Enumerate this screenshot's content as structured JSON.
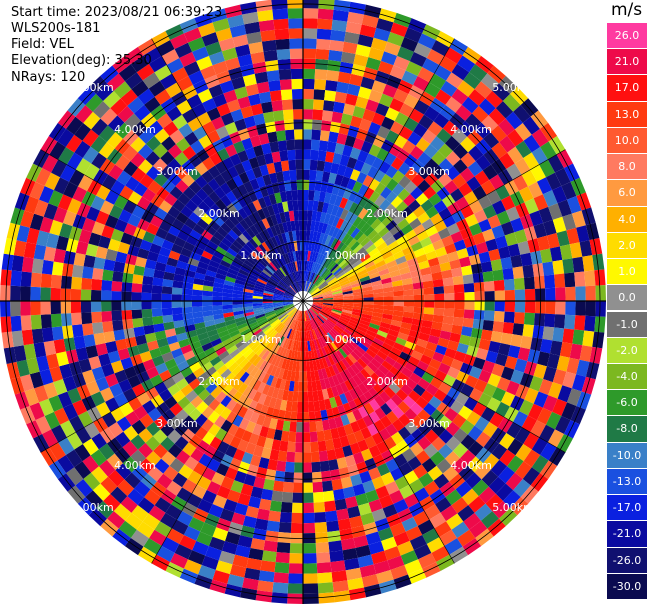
{
  "header": {
    "start_time": "Start time: 2023/08/21 06:39:23",
    "device": "WLS200s-181",
    "field": "Field: VEL",
    "elevation": "Elevation(deg): 35.30",
    "nrays": "NRays: 120"
  },
  "colorbar": {
    "unit": "m/s",
    "labels": [
      "26.0",
      "21.0",
      "17.0",
      "13.0",
      "10.0",
      "8.0",
      "6.0",
      "4.0",
      "2.0",
      "1.0",
      "0.0",
      "-1.0",
      "-2.0",
      "-4.0",
      "-6.0",
      "-8.0",
      "-10.0",
      "-13.0",
      "-17.0",
      "-21.0",
      "-26.0",
      "-30.0"
    ],
    "colors": [
      "#ff3aa0",
      "#ee0a4a",
      "#ff1010",
      "#ff3a10",
      "#ff5a30",
      "#ff7a60",
      "#ff9a40",
      "#ffb000",
      "#ffdc00",
      "#fff800",
      "#909090",
      "#707070",
      "#b0e030",
      "#7cb820",
      "#2e9a2a",
      "#1f7a46",
      "#3a80c8",
      "#1a50e0",
      "#0a20e0",
      "#0a0aa0",
      "#101070",
      "#0a0a50"
    ]
  },
  "chart_data": {
    "type": "ppi",
    "field": "VEL",
    "units": "m/s",
    "elevation_deg": 35.3,
    "n_rays": 120,
    "range_rings_km": [
      1.0,
      2.0,
      3.0,
      4.0,
      5.0
    ],
    "ring_labels": [
      "1.00km",
      "2.00km",
      "3.00km",
      "4.00km",
      "5.00km"
    ],
    "max_range_km": 5.1,
    "color_scale": [
      26,
      21,
      17,
      13,
      10,
      8,
      6,
      4,
      2,
      1,
      0,
      -1,
      -2,
      -4,
      -6,
      -8,
      -10,
      -13,
      -17,
      -21,
      -26,
      -30
    ]
  }
}
